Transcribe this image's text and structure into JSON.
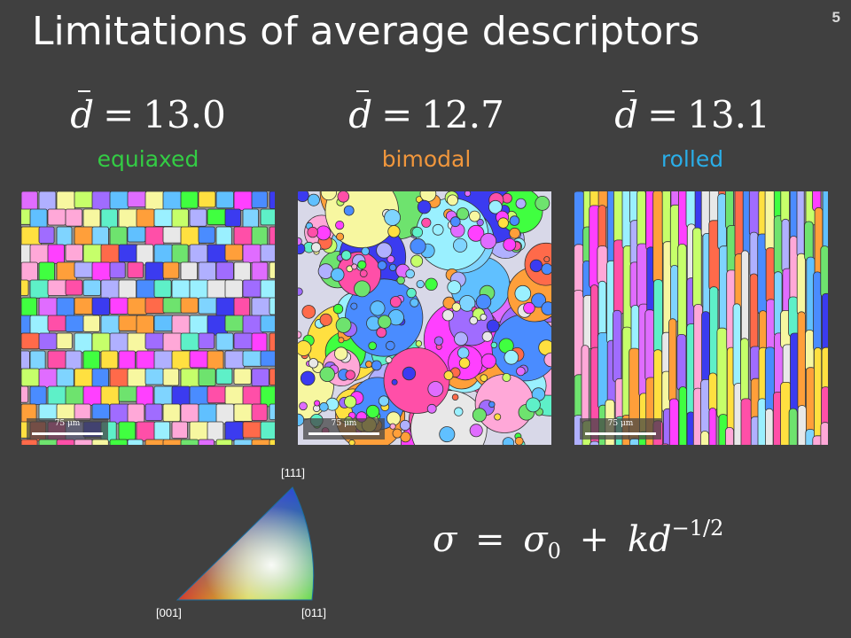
{
  "title": "Limitations of average descriptors",
  "slide_number": "5",
  "panels": [
    {
      "d_value": "13.0",
      "label": "equiaxed",
      "label_color": "#33cc44",
      "scale": "75 μm"
    },
    {
      "d_value": "12.7",
      "label": "bimodal",
      "label_color": "#f0963c",
      "scale": "75 μm"
    },
    {
      "d_value": "13.1",
      "label": "rolled",
      "label_color": "#2aaee8",
      "scale": "75 μm"
    }
  ],
  "formula_symbols": {
    "d": "d",
    "equals": "="
  },
  "ipf": {
    "top_label": "[111]",
    "left_label": "[001]",
    "right_label": "[011]"
  },
  "hall_petch": {
    "sigma": "σ",
    "equals": "=",
    "sigma0_base": "σ",
    "sigma0_sub": "0",
    "plus": "+",
    "kd": "kd",
    "exponent": "−1/2"
  },
  "palette": [
    "#ff4fa8",
    "#a06cff",
    "#6ee36e",
    "#3b3bf0",
    "#7fd4ff",
    "#ffe040",
    "#ff6a4a",
    "#c6ff6a",
    "#ffa8d8",
    "#5ef0c8",
    "#e06cff",
    "#4a8cff",
    "#f7f7a0",
    "#ff9f3a",
    "#9af0ff",
    "#b0b0ff",
    "#40ff40",
    "#ff40ff",
    "#60c0ff",
    "#e8e8e8"
  ]
}
